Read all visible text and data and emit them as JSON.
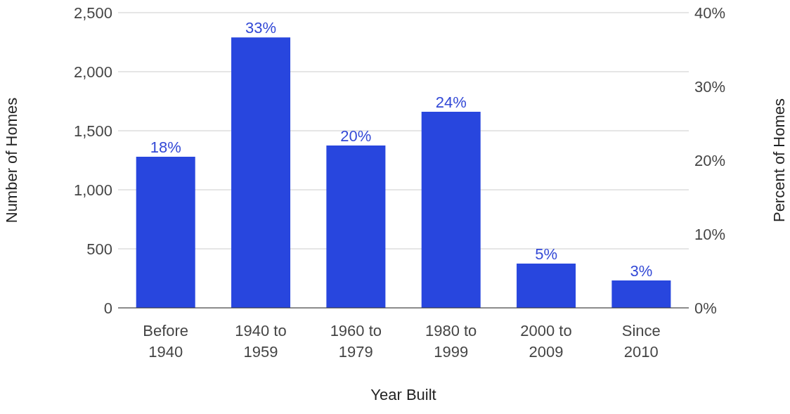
{
  "chart_data": {
    "type": "bar",
    "xlabel": "Year Built",
    "ylabel": "Number of Homes",
    "y2label": "Percent of Homes",
    "categories": [
      "Before 1940",
      "1940 to 1959",
      "1960 to 1979",
      "1980 to 1999",
      "2000 to 2009",
      "Since 2010"
    ],
    "values": [
      1280,
      2290,
      1375,
      1660,
      375,
      232
    ],
    "color": "#2846de",
    "annotations": [
      {
        "text": "18%",
        "x": "Before 1940",
        "y": 1280
      },
      {
        "text": "33%",
        "x": "1940 to 1959",
        "y": 2290
      },
      {
        "text": "20%",
        "x": "1960 to 1979",
        "y": 1375
      },
      {
        "text": "24%",
        "x": "1980 to 1999",
        "y": 1660
      },
      {
        "text": "5%",
        "x": "2000 to 2009",
        "y": 375
      },
      {
        "text": "3%",
        "x": "Since 2010",
        "y": 232
      }
    ],
    "ylim": [
      0,
      2500
    ],
    "yticks": [
      0,
      {
        "value": 500,
        "label": "500"
      },
      {
        "value": 1000,
        "label": "1,000"
      },
      {
        "value": 1500,
        "label": "1,500"
      },
      {
        "value": 2000,
        "label": "2,000"
      },
      {
        "value": 2500,
        "label": "2,500"
      }
    ],
    "y2lim": [
      0,
      40
    ],
    "y2ticks": [
      {
        "value": 0,
        "label": "0%"
      },
      {
        "value": 10,
        "label": "10%"
      },
      {
        "value": 20,
        "label": "20%"
      },
      {
        "value": 30,
        "label": "30%"
      },
      {
        "value": 40,
        "label": "40%"
      }
    ],
    "grid": "y",
    "legend": false
  }
}
